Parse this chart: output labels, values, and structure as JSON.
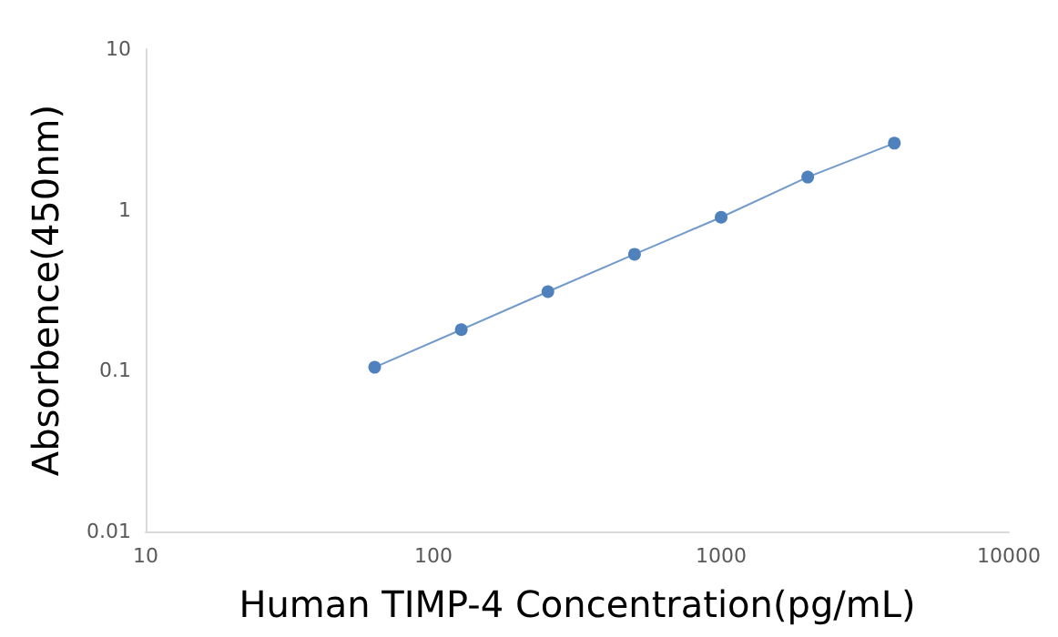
{
  "chart_data": {
    "type": "line",
    "xlabel": "Human TIMP-4 Concentration(pg/mL)",
    "ylabel": "Absorbence(450nm)",
    "x": [
      62.5,
      125,
      250,
      500,
      1000,
      2000,
      4000
    ],
    "series": [
      {
        "color": "#4f81bd",
        "values": [
          0.105,
          0.18,
          0.31,
          0.53,
          0.9,
          1.6,
          2.6
        ]
      }
    ],
    "log": "xy",
    "xlim": [
      10,
      10000
    ],
    "xticks": [
      10,
      100,
      1000,
      10000
    ],
    "ylim": [
      0.01,
      10
    ],
    "yticks": [
      0.01,
      0.1,
      1,
      10
    ],
    "marker": "circle",
    "line_style": "solid"
  }
}
